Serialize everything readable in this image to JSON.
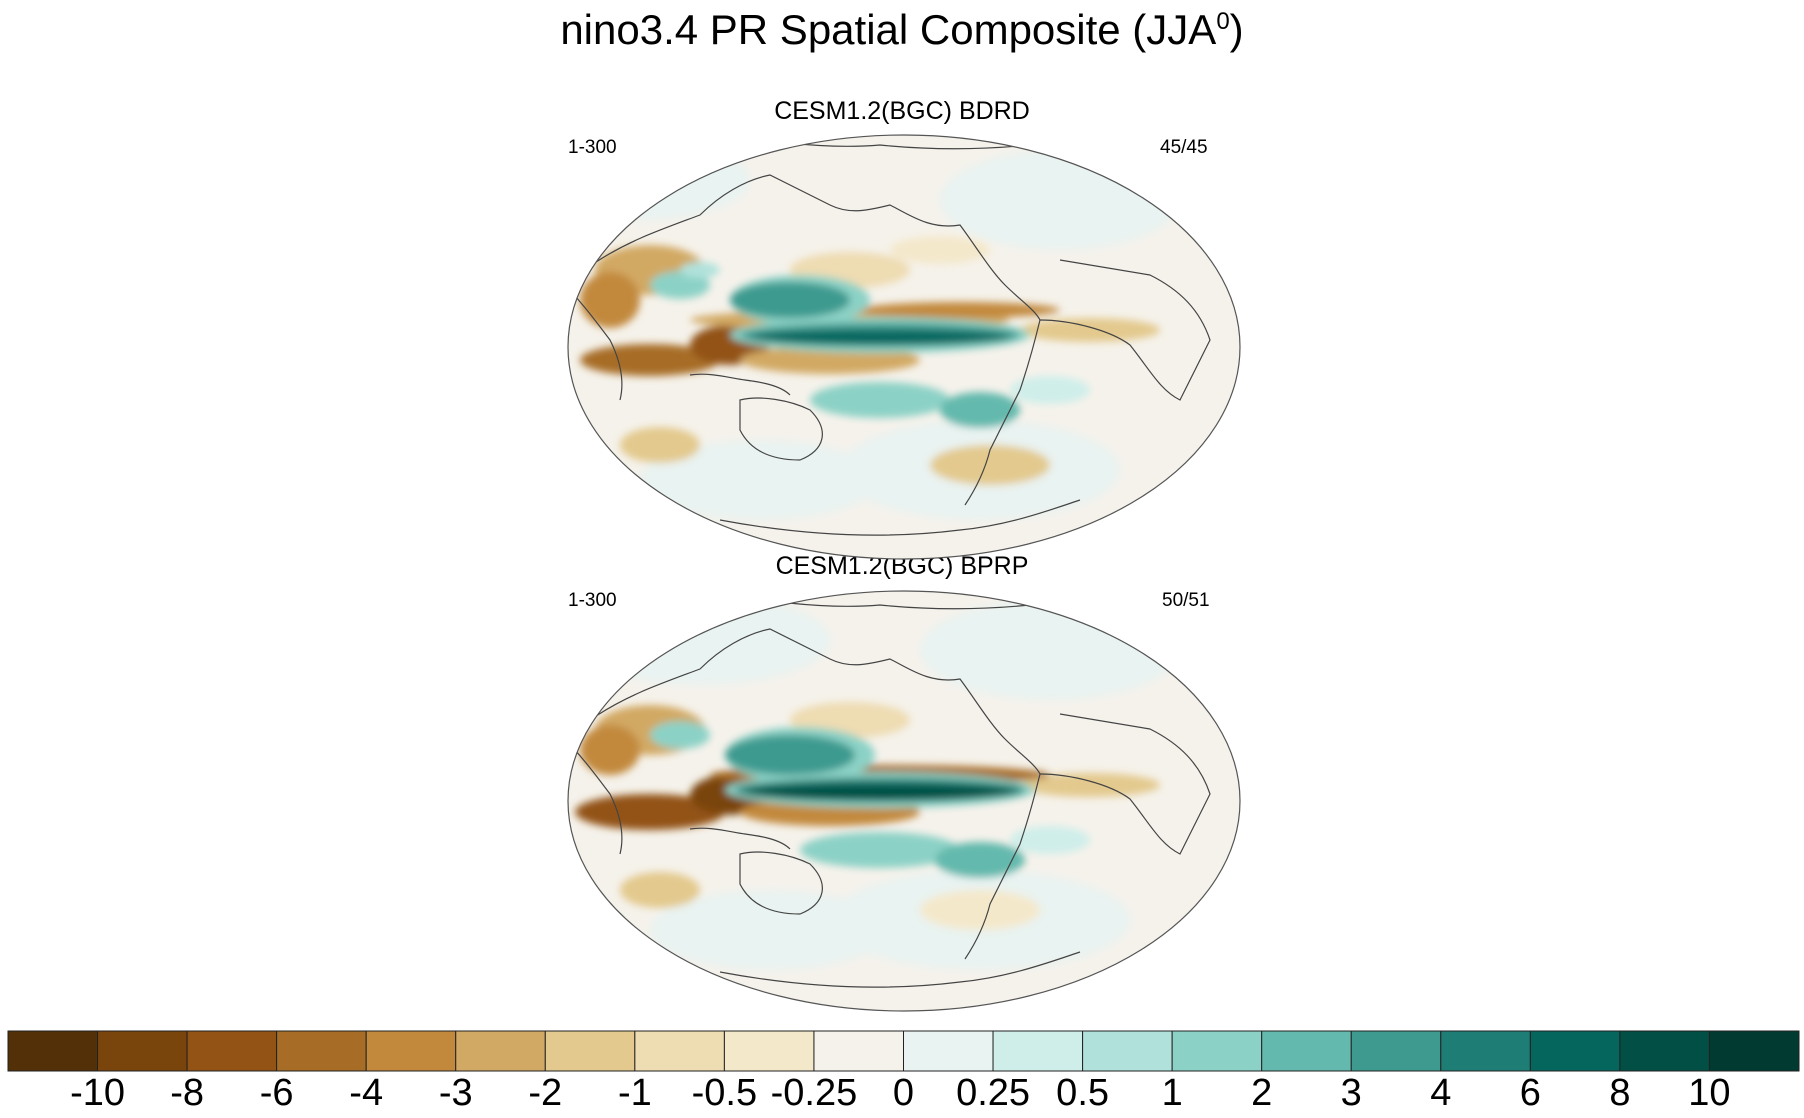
{
  "title": {
    "main": "nino3.4 PR Spatial Composite (JJA",
    "sup": "0",
    "close": ")"
  },
  "panels": [
    {
      "title": "CESM1.2(BGC) BDRD",
      "left_label": "1-300",
      "right_label": "45/45"
    },
    {
      "title": "CESM1.2(BGC) BPRP",
      "left_label": "1-300",
      "right_label": "50/51"
    }
  ],
  "colorbar": {
    "labels": [
      "-10",
      "-8",
      "-6",
      "-4",
      "-3",
      "-2",
      "-1",
      "-0.5",
      "-0.25",
      "0",
      "0.25",
      "0.5",
      "1",
      "2",
      "3",
      "4",
      "6",
      "8",
      "10"
    ],
    "colors": [
      "#533008",
      "#7a440d",
      "#935315",
      "#a76d26",
      "#c2893c",
      "#d2a964",
      "#e3c98d",
      "#eedcb2",
      "#f4e8cb",
      "#f5f2eb",
      "#e9f3f1",
      "#cfeeea",
      "#b0e2db",
      "#8cd1c6",
      "#63b9ad",
      "#3e9a8f",
      "#1e7e75",
      "#05665e",
      "#024f45",
      "#013a30"
    ]
  }
}
